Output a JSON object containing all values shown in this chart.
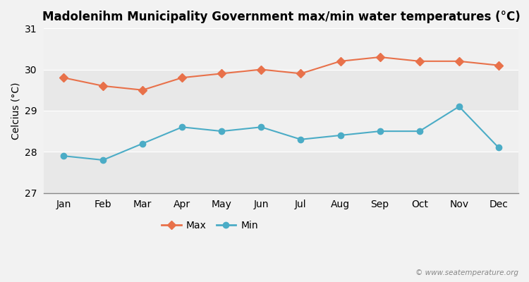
{
  "months": [
    "Jan",
    "Feb",
    "Mar",
    "Apr",
    "May",
    "Jun",
    "Jul",
    "Aug",
    "Sep",
    "Oct",
    "Nov",
    "Dec"
  ],
  "max_temps": [
    29.8,
    29.6,
    29.5,
    29.8,
    29.9,
    30.0,
    29.9,
    30.2,
    30.3,
    30.2,
    30.2,
    30.1
  ],
  "min_temps": [
    27.9,
    27.8,
    28.2,
    28.6,
    28.5,
    28.6,
    28.3,
    28.4,
    28.5,
    28.5,
    29.1,
    28.1
  ],
  "max_color": "#e8714a",
  "min_color": "#4bacc6",
  "title": "Madolenihm Municipality Government max/min water temperatures (°C)",
  "ylabel": "Celcius (°C)",
  "ylim": [
    27.0,
    31.0
  ],
  "yticks": [
    27,
    28,
    29,
    30,
    31
  ],
  "bg_color": "#f2f2f2",
  "band_colors": [
    "#e8e8e8",
    "#f0f0f0"
  ],
  "grid_color": "#ffffff",
  "watermark": "© www.seatemperature.org",
  "legend_max": "Max",
  "legend_min": "Min",
  "title_fontsize": 12,
  "label_fontsize": 10,
  "tick_fontsize": 10
}
